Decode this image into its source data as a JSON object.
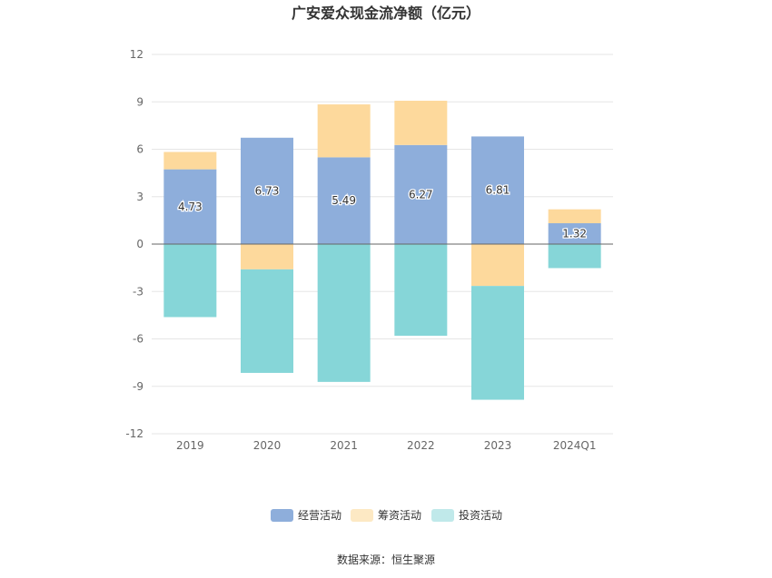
{
  "chart_data": {
    "type": "bar",
    "stacked": true,
    "title": "广安爱众现金流净额（亿元）",
    "categories": [
      "2019",
      "2020",
      "2021",
      "2022",
      "2023",
      "2024Q1"
    ],
    "ylim": [
      -12,
      12
    ],
    "yticks": [
      12,
      9,
      6,
      3,
      0,
      -3,
      -6,
      -9,
      -12
    ],
    "grid": true,
    "legend_position": "bottom",
    "series": [
      {
        "name": "经营活动",
        "values": [
          4.73,
          6.73,
          5.49,
          6.27,
          6.81,
          1.32
        ],
        "color": "#8eaedb",
        "labeled": true
      },
      {
        "name": "筹资活动",
        "values": [
          1.1,
          -1.6,
          3.35,
          2.8,
          -2.65,
          0.88
        ],
        "color": "#fdd99c",
        "labeled": false
      },
      {
        "name": "投资活动",
        "values": [
          -4.62,
          -6.55,
          -8.72,
          -5.8,
          -7.2,
          -1.52
        ],
        "color": "#86d6d8",
        "labeled": false
      }
    ],
    "legend": [
      {
        "label": "经营活动",
        "color": "#8eaedb"
      },
      {
        "label": "筹资活动",
        "color": "#fde9c4"
      },
      {
        "label": "投资活动",
        "color": "#c0e9ea"
      }
    ],
    "source": "数据来源：恒生聚源"
  }
}
